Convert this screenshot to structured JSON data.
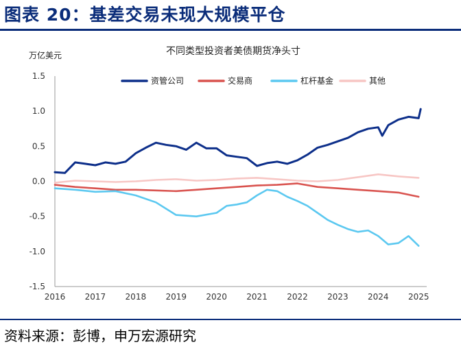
{
  "figure": {
    "title": "图表 20：基差交易未现大规模平仓",
    "source": "资料来源：彭博，申万宏源研究"
  },
  "chart_data": {
    "type": "line",
    "title": "不同类型投资者美债期货净头寸",
    "ylabel": "万亿美元",
    "xlabel": "",
    "ylim": [
      -1.5,
      1.5
    ],
    "yticks": [
      "1.5",
      "1.0",
      "0.5",
      "0.0",
      "-0.5",
      "-1.0",
      "-1.5"
    ],
    "xlim": [
      2016,
      2025.2
    ],
    "xticks": [
      "2016",
      "2017",
      "2018",
      "2019",
      "2020",
      "2021",
      "2022",
      "2023",
      "2024",
      "2025"
    ],
    "legend_position": "top",
    "grid": false,
    "series": [
      {
        "name": "资管公司",
        "color": "#0d2f8a",
        "x": [
          2016.0,
          2016.25,
          2016.5,
          2016.75,
          2017.0,
          2017.25,
          2017.5,
          2017.75,
          2018.0,
          2018.25,
          2018.5,
          2018.75,
          2019.0,
          2019.25,
          2019.5,
          2019.75,
          2020.0,
          2020.25,
          2020.5,
          2020.75,
          2021.0,
          2021.25,
          2021.5,
          2021.75,
          2022.0,
          2022.25,
          2022.5,
          2022.75,
          2023.0,
          2023.25,
          2023.5,
          2023.75,
          2024.0,
          2024.1,
          2024.25,
          2024.5,
          2024.75,
          2025.0,
          2025.05
        ],
        "y": [
          0.13,
          0.12,
          0.27,
          0.25,
          0.23,
          0.27,
          0.25,
          0.28,
          0.4,
          0.48,
          0.55,
          0.52,
          0.5,
          0.45,
          0.55,
          0.47,
          0.47,
          0.37,
          0.35,
          0.33,
          0.22,
          0.26,
          0.28,
          0.25,
          0.3,
          0.38,
          0.48,
          0.52,
          0.57,
          0.62,
          0.7,
          0.75,
          0.77,
          0.65,
          0.8,
          0.88,
          0.92,
          0.9,
          1.03
        ]
      },
      {
        "name": "交易商",
        "color": "#d9534f",
        "x": [
          2016.0,
          2016.5,
          2017.0,
          2017.5,
          2018.0,
          2018.5,
          2019.0,
          2019.5,
          2020.0,
          2020.5,
          2021.0,
          2021.5,
          2022.0,
          2022.5,
          2023.0,
          2023.5,
          2024.0,
          2024.5,
          2025.0
        ],
        "y": [
          -0.05,
          -0.08,
          -0.1,
          -0.12,
          -0.12,
          -0.13,
          -0.14,
          -0.12,
          -0.1,
          -0.08,
          -0.06,
          -0.05,
          -0.03,
          -0.08,
          -0.1,
          -0.12,
          -0.14,
          -0.16,
          -0.22
        ]
      },
      {
        "name": "杠杆基金",
        "color": "#5bc8f0",
        "x": [
          2016.0,
          2016.5,
          2017.0,
          2017.5,
          2018.0,
          2018.5,
          2019.0,
          2019.5,
          2020.0,
          2020.25,
          2020.5,
          2020.75,
          2021.0,
          2021.25,
          2021.5,
          2021.75,
          2022.0,
          2022.25,
          2022.5,
          2022.75,
          2023.0,
          2023.25,
          2023.5,
          2023.75,
          2024.0,
          2024.25,
          2024.5,
          2024.75,
          2025.0
        ],
        "y": [
          -0.1,
          -0.12,
          -0.15,
          -0.14,
          -0.2,
          -0.3,
          -0.48,
          -0.5,
          -0.45,
          -0.35,
          -0.33,
          -0.3,
          -0.2,
          -0.12,
          -0.14,
          -0.22,
          -0.28,
          -0.35,
          -0.45,
          -0.55,
          -0.62,
          -0.68,
          -0.72,
          -0.7,
          -0.78,
          -0.9,
          -0.88,
          -0.78,
          -0.92
        ]
      },
      {
        "name": "其他",
        "color": "#f7c6c4",
        "x": [
          2016.0,
          2016.5,
          2017.0,
          2017.5,
          2018.0,
          2018.5,
          2019.0,
          2019.5,
          2020.0,
          2020.5,
          2021.0,
          2021.5,
          2022.0,
          2022.5,
          2023.0,
          2023.5,
          2024.0,
          2024.5,
          2025.0
        ],
        "y": [
          -0.02,
          0.01,
          0.0,
          -0.01,
          0.0,
          0.02,
          0.03,
          0.01,
          0.02,
          0.04,
          0.05,
          0.03,
          0.01,
          0.0,
          0.02,
          0.06,
          0.1,
          0.07,
          0.05
        ]
      }
    ]
  }
}
